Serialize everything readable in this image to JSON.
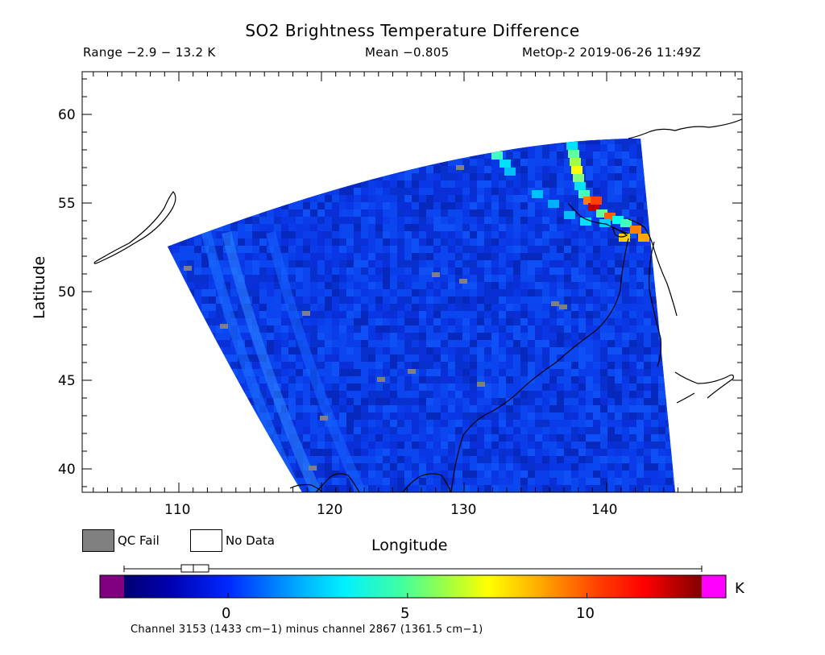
{
  "title": "SO2 Brightness Temperature Difference",
  "header": {
    "range": "Range −2.9 − 13.2 K",
    "mean": "Mean −0.805",
    "satellite": "MetOp-2 2019-06-26 11:49Z"
  },
  "axes": {
    "ylabel": "Latitude",
    "xlabel": "Longitude",
    "lat_ticks": [
      "40",
      "45",
      "50",
      "55",
      "60"
    ],
    "lon_ticks": [
      "110",
      "120",
      "130",
      "140"
    ],
    "lat_range": [
      38.8,
      62.5
    ],
    "lon_range": [
      103.2,
      149
    ]
  },
  "legend": {
    "qc_fail": "QC Fail",
    "no_data": "No Data",
    "qc_fail_color": "#808080",
    "no_data_color": "#ffffff"
  },
  "colorbar": {
    "unit": "K",
    "ticks": [
      "0",
      "5",
      "10"
    ],
    "range": [
      -2.9,
      13.2
    ],
    "under_color": "#800080",
    "over_color": "#ff00ff"
  },
  "footnote": "Channel 3153 (1433 cm−1) minus channel 2867 (1361.5 cm−1)"
}
